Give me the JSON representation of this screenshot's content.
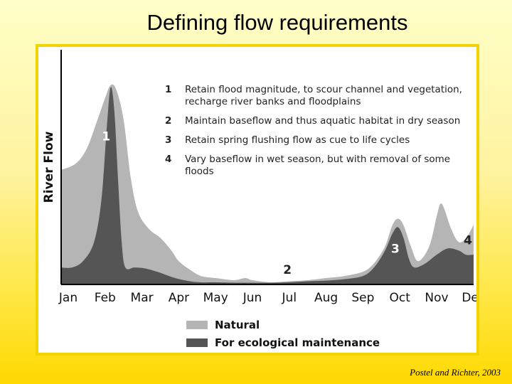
{
  "slide": {
    "title": "Defining flow requirements",
    "citation": "Postel and Richter, 2003"
  },
  "colors": {
    "natural": "#b5b5b5",
    "ecological": "#555555",
    "frame": "#f2d400"
  },
  "chart_data": {
    "type": "area",
    "ylabel": "River Flow",
    "xlabel": "",
    "months": [
      "Jan",
      "Feb",
      "Mar",
      "Apr",
      "May",
      "Jun",
      "Jul",
      "Aug",
      "Sep",
      "Oct",
      "Nov",
      "Dec"
    ],
    "x_range": [
      0,
      11.3
    ],
    "y_range": [
      0,
      100
    ],
    "series": [
      {
        "name": "Natural",
        "color": "#b5b5b5",
        "points": [
          [
            -0.2,
            54
          ],
          [
            0.2,
            57
          ],
          [
            0.5,
            64
          ],
          [
            0.8,
            78
          ],
          [
            1.0,
            88
          ],
          [
            1.15,
            94
          ],
          [
            1.3,
            92
          ],
          [
            1.5,
            78
          ],
          [
            1.7,
            50
          ],
          [
            1.9,
            34
          ],
          [
            2.2,
            26
          ],
          [
            2.5,
            22
          ],
          [
            2.8,
            16
          ],
          [
            3.0,
            11
          ],
          [
            3.3,
            7
          ],
          [
            3.6,
            4
          ],
          [
            4.0,
            3
          ],
          [
            4.5,
            2
          ],
          [
            4.8,
            3
          ],
          [
            5.0,
            2
          ],
          [
            5.5,
            1
          ],
          [
            6.0,
            1.5
          ],
          [
            6.5,
            2
          ],
          [
            7.0,
            3
          ],
          [
            7.5,
            4
          ],
          [
            8.0,
            6
          ],
          [
            8.3,
            10
          ],
          [
            8.6,
            18
          ],
          [
            8.8,
            28
          ],
          [
            8.95,
            31
          ],
          [
            9.1,
            28
          ],
          [
            9.3,
            18
          ],
          [
            9.5,
            11
          ],
          [
            9.8,
            18
          ],
          [
            10.0,
            32
          ],
          [
            10.1,
            38
          ],
          [
            10.2,
            36
          ],
          [
            10.4,
            26
          ],
          [
            10.6,
            20
          ],
          [
            10.8,
            22
          ],
          [
            11.0,
            28
          ],
          [
            11.3,
            40
          ]
        ]
      },
      {
        "name": "For ecological maintenance",
        "color": "#555555",
        "points": [
          [
            -0.2,
            8
          ],
          [
            0.1,
            8
          ],
          [
            0.4,
            11
          ],
          [
            0.7,
            20
          ],
          [
            0.9,
            40
          ],
          [
            1.05,
            75
          ],
          [
            1.15,
            93
          ],
          [
            1.25,
            82
          ],
          [
            1.35,
            50
          ],
          [
            1.45,
            20
          ],
          [
            1.55,
            8
          ],
          [
            1.8,
            8
          ],
          [
            2.1,
            7.5
          ],
          [
            2.5,
            5.5
          ],
          [
            2.9,
            3
          ],
          [
            3.3,
            1.5
          ],
          [
            3.6,
            1
          ],
          [
            4.0,
            1
          ],
          [
            4.5,
            0.8
          ],
          [
            5.0,
            0.8
          ],
          [
            5.5,
            0.8
          ],
          [
            6.0,
            1
          ],
          [
            6.5,
            1.5
          ],
          [
            7.0,
            1.8
          ],
          [
            7.5,
            2.5
          ],
          [
            8.0,
            4
          ],
          [
            8.3,
            8
          ],
          [
            8.6,
            16
          ],
          [
            8.8,
            24
          ],
          [
            8.95,
            27
          ],
          [
            9.1,
            22
          ],
          [
            9.25,
            12
          ],
          [
            9.4,
            8
          ],
          [
            9.7,
            10
          ],
          [
            10.0,
            14
          ],
          [
            10.3,
            17
          ],
          [
            10.6,
            16
          ],
          [
            10.8,
            14
          ],
          [
            11.0,
            14
          ],
          [
            11.3,
            14
          ]
        ]
      }
    ],
    "point_labels": [
      {
        "text": "1",
        "x": 1.03,
        "y": 68,
        "color": "#ffffff"
      },
      {
        "text": "2",
        "x": 5.95,
        "y": 5,
        "color": "#222222"
      },
      {
        "text": "3",
        "x": 8.88,
        "y": 15,
        "color": "#ffffff"
      },
      {
        "text": "4",
        "x": 10.85,
        "y": 19,
        "color": "#222222"
      }
    ],
    "annotations": [
      {
        "num": "1",
        "lines": [
          "Retain flood magnitude, to scour channel and vegetation,",
          "recharge river banks and floodplains"
        ]
      },
      {
        "num": "2",
        "lines": [
          "Maintain baseflow and thus aquatic habitat in dry season"
        ]
      },
      {
        "num": "3",
        "lines": [
          "Retain spring flushing flow as cue to life cycles"
        ]
      },
      {
        "num": "4",
        "lines": [
          "Vary baseflow in wet season, but with removal of some",
          "floods"
        ]
      }
    ],
    "legend": [
      {
        "label": "Natural",
        "color": "#b5b5b5"
      },
      {
        "label": "For ecological maintenance",
        "color": "#555555"
      }
    ],
    "grid": false,
    "legend_position": "bottom-left"
  }
}
